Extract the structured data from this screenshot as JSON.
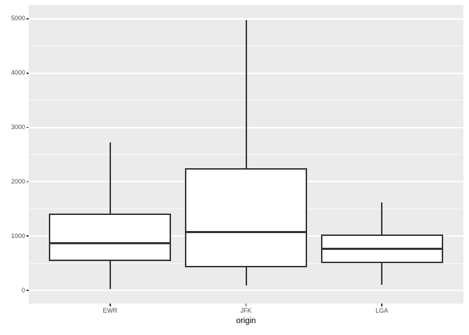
{
  "chart_data": {
    "type": "boxplot",
    "title": "",
    "xlabel": "origin",
    "ylabel": "",
    "categories": [
      "EWR",
      "JFK",
      "LGA"
    ],
    "y_ticks": [
      0,
      1000,
      2000,
      3000,
      4000,
      5000
    ],
    "y_tick_labels": [
      "0",
      "1000",
      "2000",
      "3000",
      "4000",
      "5000"
    ],
    "y_minor_ticks": [
      500,
      1500,
      2500,
      3500,
      4500
    ],
    "ylim": [
      -244,
      5257
    ],
    "grid": "major-and-minor-horizontal",
    "legend": "none",
    "series": [
      {
        "name": "EWR",
        "whisker_low": 20,
        "q1": 540,
        "median": 870,
        "q3": 1410,
        "whisker_high": 2720,
        "outliers": []
      },
      {
        "name": "JFK",
        "whisker_low": 90,
        "q1": 430,
        "median": 1070,
        "q3": 2250,
        "whisker_high": 4980,
        "outliers": []
      },
      {
        "name": "LGA",
        "whisker_low": 100,
        "q1": 500,
        "median": 760,
        "q3": 1030,
        "whisker_high": 1620,
        "outliers": []
      }
    ],
    "colors": {
      "panel_background": "#EBEBEB",
      "grid_major": "#FFFFFF",
      "grid_minor": "#FFFFFF",
      "box_fill": "#FFFFFF",
      "box_border": "#333333",
      "median_line": "#333333",
      "axis_text": "#4D4D4D",
      "axis_title": "#000000",
      "tick_mark": "#333333"
    }
  }
}
